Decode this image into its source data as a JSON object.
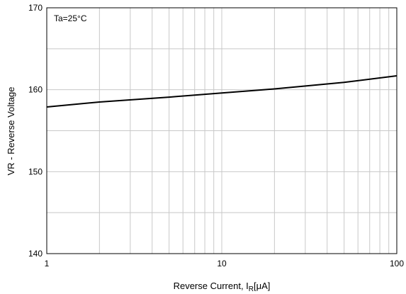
{
  "chart_data": {
    "type": "line",
    "title": "",
    "annotation": "Ta=25°C",
    "xlabel": {
      "main": "Reverse Current, I",
      "sub": "R",
      "unit": "[μA]"
    },
    "ylabel": "VR - Reverse Voltage",
    "xscale": "log",
    "xlim": [
      1,
      100
    ],
    "ylim": [
      140,
      170
    ],
    "x_tick_labels": [
      "1",
      "10",
      "100"
    ],
    "y_tick_labels": [
      "140",
      "150",
      "160",
      "170"
    ],
    "grid": true,
    "series": [
      {
        "x": [
          1,
          2,
          5,
          10,
          20,
          50,
          100
        ],
        "y": [
          157.9,
          158.5,
          159.1,
          159.6,
          160.1,
          160.9,
          161.7
        ]
      }
    ],
    "colors": {
      "line": "#000000",
      "grid": "#c8c8c8",
      "frame": "#000000"
    }
  }
}
